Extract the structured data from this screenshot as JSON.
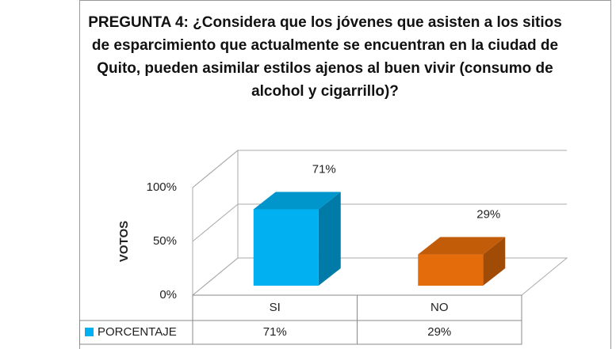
{
  "chart_data": {
    "type": "bar3d",
    "title": "PREGUNTA 4: ¿Considera que los jóvenes que asisten a los sitios de esparcimiento que actualmente se encuentran en la ciudad de Quito, pueden asimilar estilos ajenos al buen vivir (consumo de alcohol y cigarrillo)?",
    "y_label": "VOTOS",
    "categories": [
      "SI",
      "NO"
    ],
    "series": [
      {
        "name": "PORCENTAJE",
        "color": "#00b0f0",
        "colors": [
          "#00b0f0",
          "#e46c0a"
        ],
        "values": [
          71,
          29
        ],
        "value_labels": [
          "71%",
          "29%"
        ]
      }
    ],
    "ylim": [
      0,
      100
    ],
    "yticks": [
      {
        "value": 0,
        "label": "0%"
      },
      {
        "value": 50,
        "label": "50%"
      },
      {
        "value": 100,
        "label": "100%"
      }
    ],
    "grid": true
  }
}
